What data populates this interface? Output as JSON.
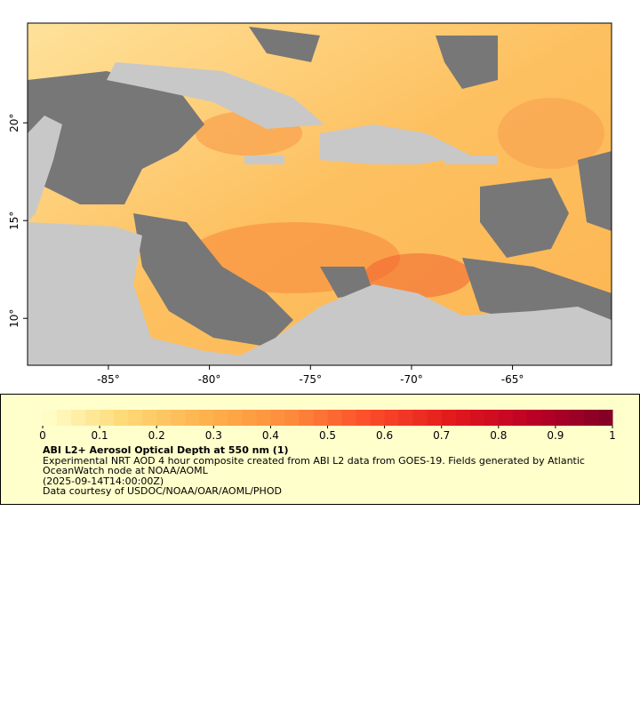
{
  "map": {
    "xlim": [
      -89,
      -60.1
    ],
    "ylim": [
      7.6,
      25.1
    ],
    "xticks": [
      {
        "value": -85,
        "label": "-85°"
      },
      {
        "value": -80,
        "label": "-80°"
      },
      {
        "value": -75,
        "label": "-75°"
      },
      {
        "value": -70,
        "label": "-70°"
      },
      {
        "value": -65,
        "label": "-65°"
      }
    ],
    "yticks": [
      {
        "value": 10,
        "label": "10°"
      },
      {
        "value": 15,
        "label": "15°"
      },
      {
        "value": 20,
        "label": "20°"
      }
    ],
    "land_color": "#c8c8c8",
    "cloud_color": "#777777"
  },
  "colorbar": {
    "range": [
      0,
      1
    ],
    "ticks": [
      0,
      0.1,
      0.2,
      0.3,
      0.4,
      0.5,
      0.6,
      0.7,
      0.8,
      0.9,
      1
    ],
    "colormap": [
      "#ffffcc",
      "#fed976",
      "#feb24c",
      "#fd8d3c",
      "#fc4e2a",
      "#e31a1c",
      "#bd0026",
      "#800026"
    ],
    "steps": 40
  },
  "legend": {
    "title": "ABI L2+ Aerosol Optical Depth at 550 nm (1)",
    "lines": [
      "Experimental NRT AOD 4 hour composite created from ABI L2 data from GOES-19. Fields generated by Atlantic OceanWatch node at NOAA/AOML",
      "(2025-09-14T14:00:00Z)",
      "Data courtesy of USDOC/NOAA/OAR/AOML/PHOD"
    ]
  }
}
